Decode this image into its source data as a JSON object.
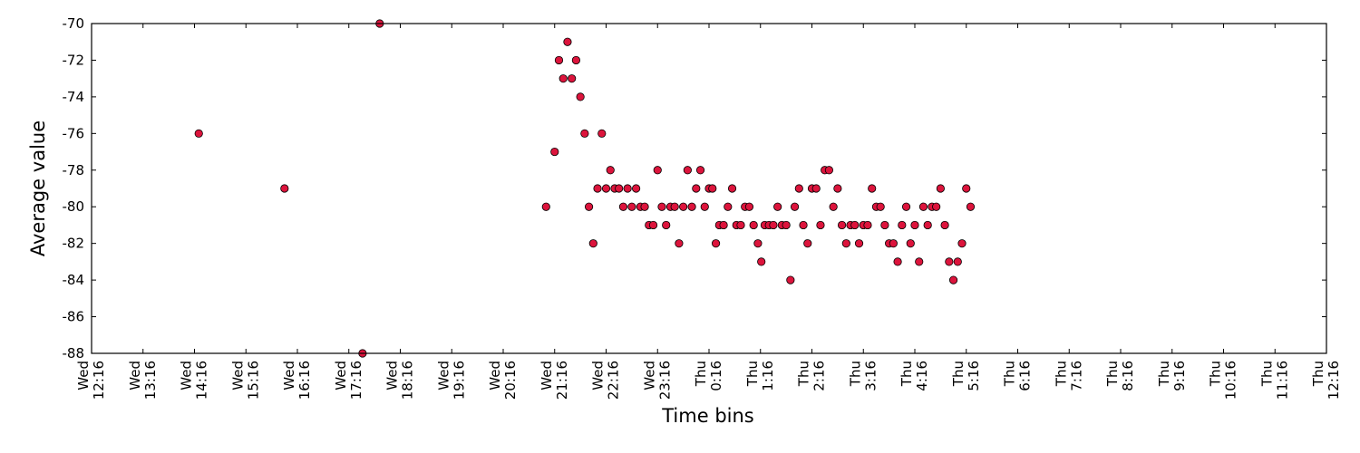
{
  "chart_data": {
    "type": "scatter",
    "title": "",
    "xlabel": "Time bins",
    "ylabel": "Average value",
    "x_unit": "minutes since Wed 12:16",
    "xlim": [
      0,
      1440
    ],
    "ylim": [
      -88,
      -70
    ],
    "yticks": [
      -88,
      -86,
      -84,
      -82,
      -80,
      -78,
      -76,
      -74,
      -72,
      -70
    ],
    "xticks": [
      {
        "x": 0,
        "day": "Wed",
        "time": "12:16"
      },
      {
        "x": 60,
        "day": "Wed",
        "time": "13:16"
      },
      {
        "x": 120,
        "day": "Wed",
        "time": "14:16"
      },
      {
        "x": 180,
        "day": "Wed",
        "time": "15:16"
      },
      {
        "x": 240,
        "day": "Wed",
        "time": "16:16"
      },
      {
        "x": 300,
        "day": "Wed",
        "time": "17:16"
      },
      {
        "x": 360,
        "day": "Wed",
        "time": "18:16"
      },
      {
        "x": 420,
        "day": "Wed",
        "time": "19:16"
      },
      {
        "x": 480,
        "day": "Wed",
        "time": "20:16"
      },
      {
        "x": 540,
        "day": "Wed",
        "time": "21:16"
      },
      {
        "x": 600,
        "day": "Wed",
        "time": "22:16"
      },
      {
        "x": 660,
        "day": "Wed",
        "time": "23:16"
      },
      {
        "x": 720,
        "day": "Thu",
        "time": "0:16"
      },
      {
        "x": 780,
        "day": "Thu",
        "time": "1:16"
      },
      {
        "x": 840,
        "day": "Thu",
        "time": "2:16"
      },
      {
        "x": 900,
        "day": "Thu",
        "time": "3:16"
      },
      {
        "x": 960,
        "day": "Thu",
        "time": "4:16"
      },
      {
        "x": 1020,
        "day": "Thu",
        "time": "5:16"
      },
      {
        "x": 1080,
        "day": "Thu",
        "time": "6:16"
      },
      {
        "x": 1140,
        "day": "Thu",
        "time": "7:16"
      },
      {
        "x": 1200,
        "day": "Thu",
        "time": "8:16"
      },
      {
        "x": 1260,
        "day": "Thu",
        "time": "9:16"
      },
      {
        "x": 1320,
        "day": "Thu",
        "time": "10:16"
      },
      {
        "x": 1380,
        "day": "Thu",
        "time": "11:16"
      },
      {
        "x": 1440,
        "day": "Thu",
        "time": "12:16"
      }
    ],
    "grid": false,
    "marker_color": "#dc143c",
    "marker_edge_color": "#000000",
    "series": [
      {
        "name": "Average value",
        "points": [
          [
            125,
            -76
          ],
          [
            225,
            -79
          ],
          [
            316,
            -88
          ],
          [
            336,
            -70
          ],
          [
            530,
            -80
          ],
          [
            540,
            -77
          ],
          [
            545,
            -72
          ],
          [
            550,
            -73
          ],
          [
            555,
            -71
          ],
          [
            560,
            -73
          ],
          [
            565,
            -72
          ],
          [
            570,
            -74
          ],
          [
            575,
            -76
          ],
          [
            580,
            -80
          ],
          [
            585,
            -82
          ],
          [
            590,
            -79
          ],
          [
            595,
            -76
          ],
          [
            600,
            -79
          ],
          [
            605,
            -78
          ],
          [
            610,
            -79
          ],
          [
            615,
            -79
          ],
          [
            620,
            -80
          ],
          [
            625,
            -79
          ],
          [
            630,
            -80
          ],
          [
            635,
            -79
          ],
          [
            640,
            -80
          ],
          [
            645,
            -80
          ],
          [
            650,
            -81
          ],
          [
            655,
            -81
          ],
          [
            660,
            -78
          ],
          [
            665,
            -80
          ],
          [
            670,
            -81
          ],
          [
            675,
            -80
          ],
          [
            680,
            -80
          ],
          [
            685,
            -82
          ],
          [
            690,
            -80
          ],
          [
            695,
            -78
          ],
          [
            700,
            -80
          ],
          [
            705,
            -79
          ],
          [
            710,
            -78
          ],
          [
            715,
            -80
          ],
          [
            720,
            -79
          ],
          [
            724,
            -79
          ],
          [
            728,
            -82
          ],
          [
            732,
            -81
          ],
          [
            737,
            -81
          ],
          [
            742,
            -80
          ],
          [
            747,
            -79
          ],
          [
            752,
            -81
          ],
          [
            757,
            -81
          ],
          [
            762,
            -80
          ],
          [
            767,
            -80
          ],
          [
            772,
            -81
          ],
          [
            777,
            -82
          ],
          [
            781,
            -83
          ],
          [
            785,
            -81
          ],
          [
            790,
            -81
          ],
          [
            795,
            -81
          ],
          [
            800,
            -80
          ],
          [
            805,
            -81
          ],
          [
            810,
            -81
          ],
          [
            815,
            -84
          ],
          [
            820,
            -80
          ],
          [
            825,
            -79
          ],
          [
            830,
            -81
          ],
          [
            835,
            -82
          ],
          [
            840,
            -79
          ],
          [
            845,
            -79
          ],
          [
            850,
            -81
          ],
          [
            855,
            -78
          ],
          [
            860,
            -78
          ],
          [
            865,
            -80
          ],
          [
            870,
            -79
          ],
          [
            875,
            -81
          ],
          [
            880,
            -82
          ],
          [
            885,
            -81
          ],
          [
            890,
            -81
          ],
          [
            895,
            -82
          ],
          [
            900,
            -81
          ],
          [
            905,
            -81
          ],
          [
            910,
            -79
          ],
          [
            915,
            -80
          ],
          [
            920,
            -80
          ],
          [
            925,
            -81
          ],
          [
            930,
            -82
          ],
          [
            935,
            -82
          ],
          [
            940,
            -83
          ],
          [
            945,
            -81
          ],
          [
            950,
            -80
          ],
          [
            955,
            -82
          ],
          [
            960,
            -81
          ],
          [
            965,
            -83
          ],
          [
            970,
            -80
          ],
          [
            975,
            -81
          ],
          [
            980,
            -80
          ],
          [
            985,
            -80
          ],
          [
            990,
            -79
          ],
          [
            995,
            -81
          ],
          [
            1000,
            -83
          ],
          [
            1005,
            -84
          ],
          [
            1010,
            -83
          ],
          [
            1015,
            -82
          ],
          [
            1020,
            -79
          ],
          [
            1025,
            -80
          ]
        ]
      }
    ]
  }
}
